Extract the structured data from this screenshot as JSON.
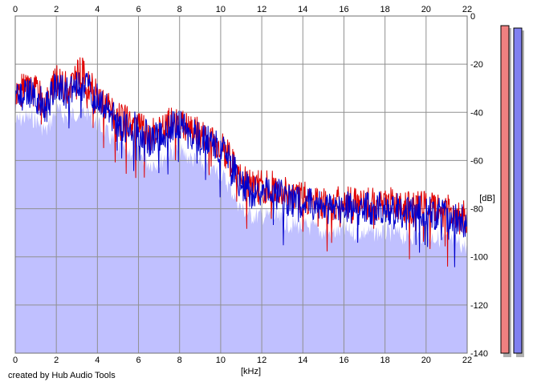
{
  "credit": "created by Hub Audio Tools",
  "chart_data": {
    "type": "area",
    "xlabel": "[kHz]",
    "ylabel": "[dB]",
    "xlim": [
      0,
      22
    ],
    "ylim": [
      -140,
      0
    ],
    "xticks": [
      0,
      2,
      4,
      6,
      8,
      10,
      12,
      14,
      16,
      18,
      20,
      22
    ],
    "yticks": [
      0,
      -20,
      -40,
      -60,
      -80,
      -100,
      -120,
      -140
    ],
    "grid": true,
    "fill_color": "#c0c0ff",
    "series": [
      {
        "color": "#e00000",
        "x": [
          0,
          0.5,
          1,
          1.5,
          2,
          2.5,
          3,
          3.2,
          3.5,
          4,
          4.5,
          5,
          5.5,
          6,
          6.5,
          7,
          7.5,
          8,
          8.5,
          9,
          9.5,
          10,
          10.5,
          11,
          11.5,
          12,
          12.5,
          13,
          13.5,
          14,
          14.5,
          15,
          15.5,
          16,
          16.5,
          17,
          17.5,
          18,
          18.5,
          19,
          19.5,
          20,
          20.5,
          21,
          21.5,
          22
        ],
        "values": [
          -32,
          -30,
          -31,
          -36,
          -27,
          -30,
          -25,
          -22,
          -28,
          -33,
          -37,
          -43,
          -44,
          -45,
          -49,
          -49,
          -44,
          -44,
          -47,
          -49,
          -51,
          -53,
          -60,
          -68,
          -71,
          -71,
          -71,
          -73,
          -75,
          -75,
          -76,
          -78,
          -78,
          -77,
          -78,
          -78,
          -78,
          -78,
          -78,
          -80,
          -79,
          -79,
          -80,
          -81,
          -82,
          -84
        ]
      },
      {
        "color": "#0000cc",
        "x": [
          0,
          0.5,
          1,
          1.5,
          2,
          2.5,
          3,
          3.5,
          4,
          4.5,
          5,
          5.5,
          6,
          6.5,
          7,
          7.5,
          8,
          8.5,
          9,
          9.5,
          10,
          10.5,
          11,
          11.5,
          12,
          12.5,
          13,
          13.5,
          14,
          14.5,
          15,
          15.5,
          16,
          16.5,
          17,
          17.5,
          18,
          18.5,
          19,
          19.5,
          20,
          20.5,
          21,
          21.5,
          22
        ],
        "values": [
          -34,
          -32,
          -33,
          -38,
          -29,
          -32,
          -30,
          -30,
          -35,
          -39,
          -45,
          -46,
          -47,
          -51,
          -51,
          -46,
          -46,
          -49,
          -51,
          -53,
          -55,
          -62,
          -70,
          -73,
          -73,
          -73,
          -75,
          -77,
          -77,
          -78,
          -80,
          -80,
          -79,
          -80,
          -80,
          -80,
          -80,
          -80,
          -82,
          -81,
          -81,
          -82,
          -83,
          -84,
          -86
        ]
      }
    ],
    "level_meters": [
      {
        "color": "#f08080",
        "level_db": -4
      },
      {
        "color": "#8080f0",
        "level_db": -5
      }
    ]
  }
}
